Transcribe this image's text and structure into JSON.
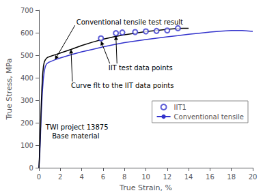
{
  "chart_data": {
    "type": "line",
    "xlabel": "True Strain, %",
    "ylabel": "True Stress, MPa",
    "xlim": [
      0,
      20
    ],
    "ylim": [
      0,
      700
    ],
    "xticks": [
      0,
      2,
      4,
      6,
      8,
      10,
      12,
      14,
      16,
      18,
      20
    ],
    "yticks": [
      0,
      100,
      200,
      300,
      400,
      500,
      600,
      700
    ],
    "grid": false,
    "legend": "right",
    "series": [
      {
        "name": "Conventional tensile",
        "type": "line",
        "color": "#3333cc",
        "x": [
          0.0,
          0.08,
          0.15,
          0.22,
          0.3,
          0.4,
          0.5,
          0.6,
          0.7,
          0.8,
          0.9,
          1.0,
          1.5,
          2.0,
          3.0,
          4.0,
          5.0,
          6.0,
          7.0,
          8.0,
          9.0,
          10.0,
          11.0,
          12.0,
          13.0,
          13.5,
          14.0,
          15.0,
          16.0,
          17.0,
          18.0,
          19.0,
          20.0
        ],
        "values": [
          0,
          60,
          150,
          240,
          320,
          390,
          430,
          450,
          460,
          465,
          468,
          470,
          480,
          488,
          502,
          515,
          526,
          537,
          547,
          556,
          563,
          570,
          576,
          582,
          587,
          590,
          593,
          598,
          603,
          607,
          610,
          610,
          606
        ]
      },
      {
        "type": "line",
        "color": "#000000",
        "x": [
          0.0,
          0.07,
          0.14,
          0.2,
          0.28,
          0.35,
          0.42,
          0.5,
          0.6,
          0.7,
          0.8,
          0.9,
          1.0,
          1.5,
          2.0,
          3.0,
          4.0,
          5.0,
          6.0,
          7.0,
          8.0,
          9.0,
          10.0,
          11.0,
          12.0,
          13.0,
          13.5,
          14.0
        ],
        "values": [
          0,
          70,
          165,
          260,
          355,
          415,
          450,
          470,
          480,
          486,
          490,
          492,
          494,
          502,
          510,
          526,
          543,
          558,
          571,
          582,
          591,
          598,
          605,
          610,
          615,
          619,
          620,
          620
        ]
      },
      {
        "name": "IIT1",
        "type": "scatter",
        "color": "#3333cc",
        "marker": "open_circle",
        "x": [
          5.8,
          7.2,
          7.8,
          9.0,
          10.0,
          11.0,
          12.0,
          13.0
        ],
        "values": [
          575,
          598,
          601,
          603,
          606,
          608,
          610,
          620
        ]
      }
    ],
    "annotations": [
      {
        "text": "Conventional tensile test result"
      },
      {
        "text": "IIT test data points"
      },
      {
        "text": "Curve flt to the IIT data points"
      },
      {
        "text": "TWI project 13875\n   Base material"
      }
    ]
  }
}
